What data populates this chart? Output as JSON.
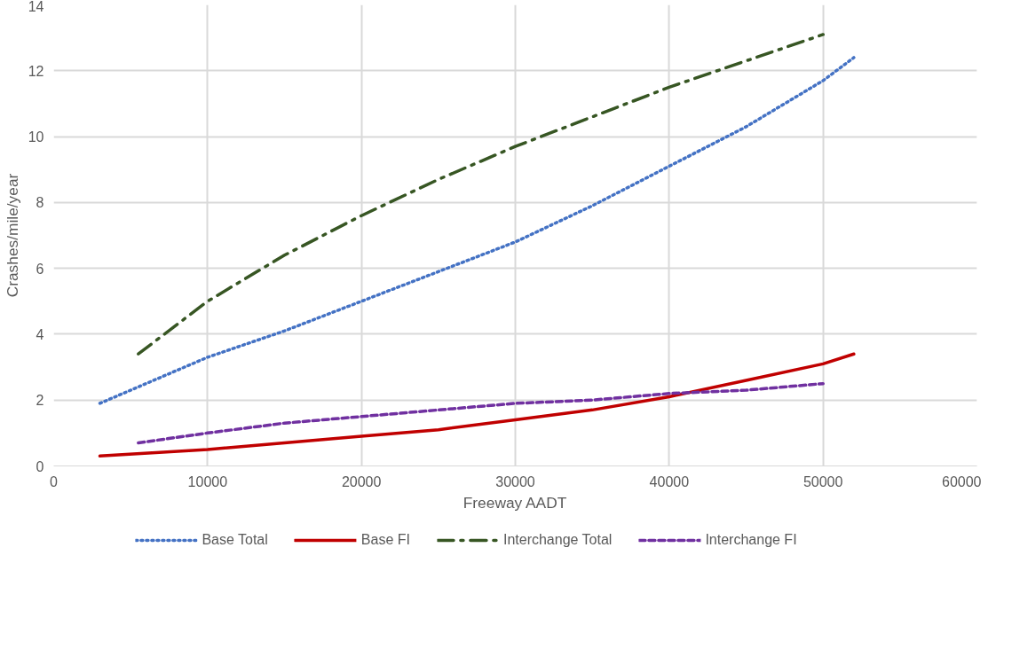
{
  "chart_data": {
    "type": "line",
    "xlabel": "Freeway AADT",
    "ylabel": "Crashes/mile/year",
    "xlim": [
      0,
      60000
    ],
    "xticks": [
      0,
      10000,
      20000,
      30000,
      40000,
      50000,
      60000
    ],
    "ylim": [
      0,
      14
    ],
    "yticks": [
      0,
      2,
      4,
      6,
      8,
      10,
      12,
      14
    ],
    "grid": true,
    "legend": "bottom",
    "marker": "none",
    "series": [
      {
        "name": "Base Total",
        "color": "#4472c4",
        "line_style": "dotted",
        "x": [
          3000,
          5000,
          10000,
          15000,
          20000,
          25000,
          30000,
          35000,
          40000,
          45000,
          50000,
          52000
        ],
        "values": [
          1.9,
          2.3,
          3.3,
          4.1,
          5.0,
          5.9,
          6.8,
          7.9,
          9.1,
          10.3,
          11.7,
          12.4
        ]
      },
      {
        "name": "Base FI",
        "color": "#c00000",
        "line_style": "solid",
        "x": [
          3000,
          10000,
          15000,
          20000,
          25000,
          30000,
          35000,
          40000,
          45000,
          50000,
          52000
        ],
        "values": [
          0.3,
          0.5,
          0.7,
          0.9,
          1.1,
          1.4,
          1.7,
          2.1,
          2.6,
          3.1,
          3.4
        ]
      },
      {
        "name": "Interchange Total",
        "color": "#375623",
        "line_style": "dashdot",
        "x": [
          5500,
          10000,
          15000,
          20000,
          25000,
          30000,
          35000,
          40000,
          45000,
          50000
        ],
        "values": [
          3.4,
          5.0,
          6.4,
          7.6,
          8.7,
          9.7,
          10.6,
          11.5,
          12.3,
          13.1
        ]
      },
      {
        "name": "Interchange FI",
        "color": "#7030a0",
        "line_style": "dashed",
        "x": [
          5500,
          10000,
          15000,
          20000,
          25000,
          30000,
          35000,
          40000,
          45000,
          50000
        ],
        "values": [
          0.7,
          1.0,
          1.3,
          1.5,
          1.7,
          1.9,
          2.0,
          2.2,
          2.3,
          2.5
        ]
      }
    ]
  }
}
